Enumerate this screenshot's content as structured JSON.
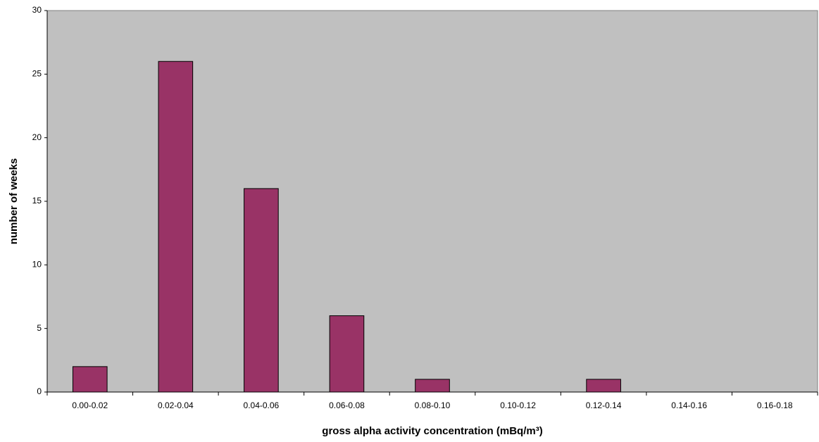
{
  "chart_data": {
    "type": "bar",
    "x_label": "gross alpha activity concentration (mBq/m³)",
    "y_label": "number of weeks",
    "categories": [
      "0.00-0.02",
      "0.02-0.04",
      "0.04-0.06",
      "0.06-0.08",
      "0.08-0.10",
      "0.10-0.12",
      "0.12-0.14",
      "0.14-0.16",
      "0.16-0.18"
    ],
    "values": [
      2,
      26,
      16,
      6,
      1,
      0,
      1,
      0,
      0
    ],
    "color": "#993366",
    "ylim": [
      0,
      30
    ],
    "yticks": [
      0,
      5,
      10,
      15,
      20,
      25,
      30
    ],
    "grid": false
  }
}
